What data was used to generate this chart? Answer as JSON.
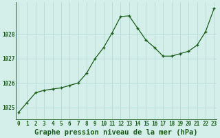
{
  "x": [
    0,
    1,
    2,
    3,
    4,
    5,
    6,
    7,
    8,
    9,
    10,
    11,
    12,
    13,
    14,
    15,
    16,
    17,
    18,
    19,
    20,
    21,
    22,
    23
  ],
  "y": [
    1024.8,
    1025.2,
    1025.6,
    1025.7,
    1025.75,
    1025.8,
    1025.9,
    1026.0,
    1026.4,
    1027.0,
    1027.45,
    1028.05,
    1028.72,
    1028.75,
    1028.25,
    1027.75,
    1027.45,
    1027.1,
    1027.1,
    1027.2,
    1027.3,
    1027.55,
    1028.1,
    1029.05
  ],
  "xlabel": "Graphe pression niveau de la mer (hPa)",
  "background_color": "#d4eeea",
  "line_color": "#1a5c1a",
  "marker_color": "#1a5c1a",
  "grid_color_major": "#b0d8d0",
  "grid_color_minor": "#c8e8e0",
  "text_color": "#1a5c1a",
  "ylim": [
    1024.5,
    1029.3
  ],
  "yticks": [
    1025,
    1026,
    1027,
    1028
  ],
  "xlim": [
    -0.3,
    23.3
  ],
  "xticks": [
    0,
    1,
    2,
    3,
    4,
    5,
    6,
    7,
    8,
    9,
    10,
    11,
    12,
    13,
    14,
    15,
    16,
    17,
    18,
    19,
    20,
    21,
    22,
    23
  ],
  "tick_fontsize": 5.5,
  "xlabel_fontsize": 7.5,
  "line_width": 0.9,
  "marker_size": 3.5
}
